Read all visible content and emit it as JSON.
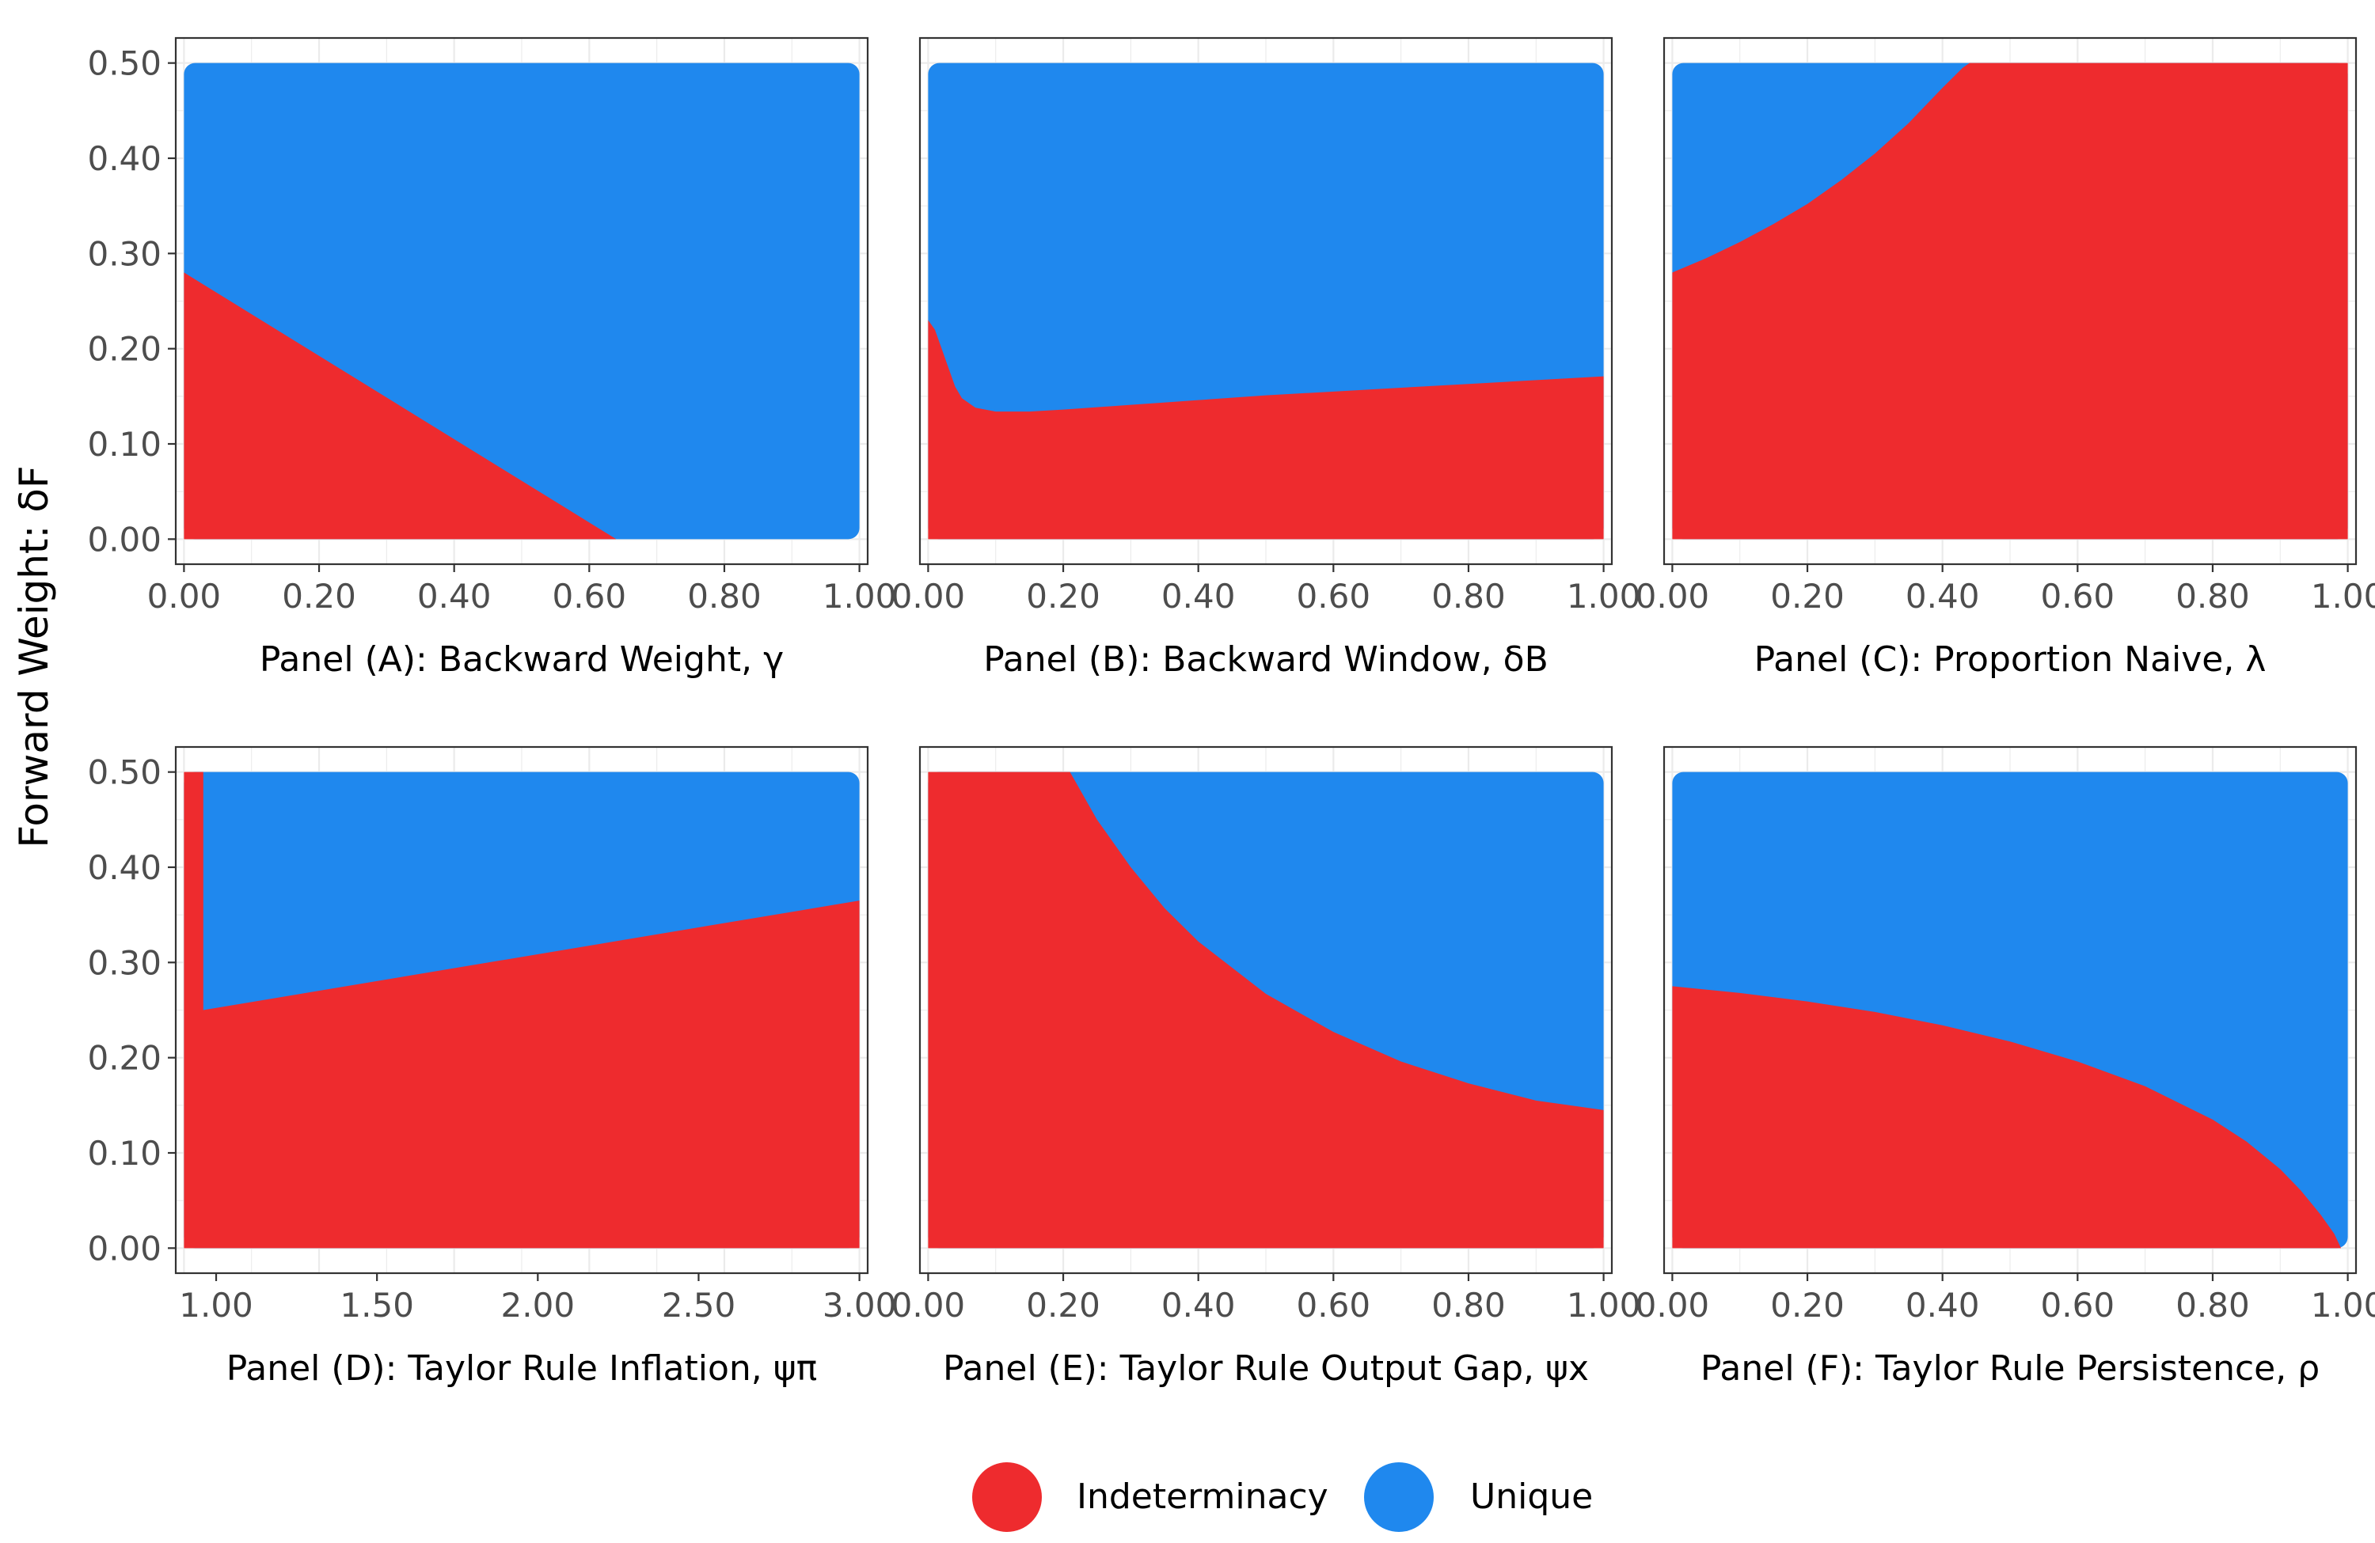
{
  "figure": {
    "ylabel": "Forward Weight: δF",
    "legend": {
      "placement": "bottom",
      "items": [
        {
          "label": "Indeterminacy",
          "color": "#EE2B2E"
        },
        {
          "label": "Unique",
          "color": "#1F88EE"
        }
      ]
    }
  },
  "colors": {
    "indeterminacy": "#EE2B2E",
    "unique": "#1F88EE",
    "grid": "#EBEBEB",
    "frame": "#333333"
  },
  "chart_data": [
    {
      "type": "area",
      "title": "Panel (A): Backward Weight, γ",
      "xlabel": "Panel (A): Backward Weight, γ",
      "ylabel": "Forward Weight: δF",
      "xlim": [
        0,
        1
      ],
      "ylim": [
        0,
        0.5
      ],
      "xticks": [
        "0.00",
        "0.20",
        "0.40",
        "0.60",
        "0.80",
        "1.00"
      ],
      "yticks": [
        "0.00",
        "0.10",
        "0.20",
        "0.30",
        "0.40",
        "0.50"
      ],
      "series": [
        {
          "name": "Indeterminacy",
          "region": "below boundary"
        },
        {
          "name": "Unique",
          "region": "above boundary"
        }
      ],
      "boundary": {
        "x": [
          0.0,
          0.64
        ],
        "y": [
          0.28,
          0.0
        ]
      }
    },
    {
      "type": "area",
      "title": "Panel (B): Backward Window, δB",
      "xlabel": "Panel (B): Backward Window, δB",
      "xlim": [
        0,
        1
      ],
      "ylim": [
        0,
        0.5
      ],
      "xticks": [
        "0.00",
        "0.20",
        "0.40",
        "0.60",
        "0.80",
        "1.00"
      ],
      "series": [
        {
          "name": "Indeterminacy",
          "region": "below boundary"
        },
        {
          "name": "Unique",
          "region": "above boundary"
        }
      ],
      "boundary": {
        "x": [
          0.0,
          0.01,
          0.02,
          0.03,
          0.04,
          0.05,
          0.07,
          0.1,
          0.15,
          0.2,
          0.3,
          0.4,
          0.5,
          0.6,
          0.7,
          0.8,
          0.9,
          1.0
        ],
        "y": [
          0.23,
          0.22,
          0.2,
          0.18,
          0.16,
          0.148,
          0.138,
          0.134,
          0.134,
          0.136,
          0.141,
          0.146,
          0.151,
          0.155,
          0.159,
          0.163,
          0.167,
          0.171
        ]
      }
    },
    {
      "type": "area",
      "title": "Panel (C): Proportion Naive, λ",
      "xlabel": "Panel (C): Proportion Naive, λ",
      "xlim": [
        0,
        1
      ],
      "ylim": [
        0,
        0.5
      ],
      "xticks": [
        "0.00",
        "0.20",
        "0.40",
        "0.60",
        "0.80",
        "1.00"
      ],
      "series": [
        {
          "name": "Indeterminacy",
          "region": "below boundary"
        },
        {
          "name": "Unique",
          "region": "above boundary"
        }
      ],
      "boundary": {
        "x": [
          0.0,
          0.05,
          0.1,
          0.15,
          0.2,
          0.25,
          0.3,
          0.35,
          0.4,
          0.43,
          0.44
        ],
        "y": [
          0.28,
          0.295,
          0.312,
          0.331,
          0.352,
          0.377,
          0.405,
          0.437,
          0.474,
          0.495,
          0.5
        ]
      }
    },
    {
      "type": "area",
      "title": "Panel (D): Taylor Rule Inflation, ψπ",
      "xlabel": "Panel (D): Taylor Rule Inflation, ψπ",
      "xlim": [
        0.9,
        3.0
      ],
      "ylim": [
        0,
        0.5
      ],
      "xticks": [
        "1.00",
        "1.50",
        "2.00",
        "2.50",
        "3.00"
      ],
      "series": [
        {
          "name": "Indeterminacy",
          "region": "below boundary, and all of ψπ < 0.96"
        },
        {
          "name": "Unique",
          "region": "above boundary for ψπ ≥ 0.96"
        }
      ],
      "boundary": {
        "x": [
          0.96,
          3.0
        ],
        "y": [
          0.25,
          0.365
        ]
      }
    },
    {
      "type": "area",
      "title": "Panel (E): Taylor Rule Output Gap, ψx",
      "xlabel": "Panel (E): Taylor Rule Output Gap, ψx",
      "xlim": [
        0,
        1
      ],
      "ylim": [
        0,
        0.5
      ],
      "xticks": [
        "0.00",
        "0.20",
        "0.40",
        "0.60",
        "0.80",
        "1.00"
      ],
      "series": [
        {
          "name": "Indeterminacy",
          "region": "below boundary"
        },
        {
          "name": "Unique",
          "region": "above boundary"
        }
      ],
      "boundary": {
        "x": [
          0.21,
          0.25,
          0.3,
          0.35,
          0.4,
          0.5,
          0.6,
          0.7,
          0.8,
          0.9,
          1.0
        ],
        "y": [
          0.5,
          0.45,
          0.4,
          0.357,
          0.322,
          0.267,
          0.227,
          0.196,
          0.173,
          0.155,
          0.145
        ]
      }
    },
    {
      "type": "area",
      "title": "Panel (F): Taylor Rule Persistence, ρ",
      "xlabel": "Panel (F): Taylor Rule Persistence, ρ",
      "xlim": [
        0,
        1
      ],
      "ylim": [
        0,
        0.5
      ],
      "xticks": [
        "0.00",
        "0.20",
        "0.40",
        "0.60",
        "0.80",
        "1.00"
      ],
      "series": [
        {
          "name": "Indeterminacy",
          "region": "below boundary"
        },
        {
          "name": "Unique",
          "region": "above boundary"
        }
      ],
      "boundary": {
        "x": [
          0.0,
          0.1,
          0.2,
          0.3,
          0.4,
          0.5,
          0.6,
          0.7,
          0.8,
          0.85,
          0.9,
          0.93,
          0.96,
          0.98,
          0.99
        ],
        "y": [
          0.275,
          0.268,
          0.259,
          0.248,
          0.234,
          0.217,
          0.196,
          0.17,
          0.135,
          0.112,
          0.083,
          0.061,
          0.035,
          0.015,
          0.0
        ]
      }
    }
  ]
}
